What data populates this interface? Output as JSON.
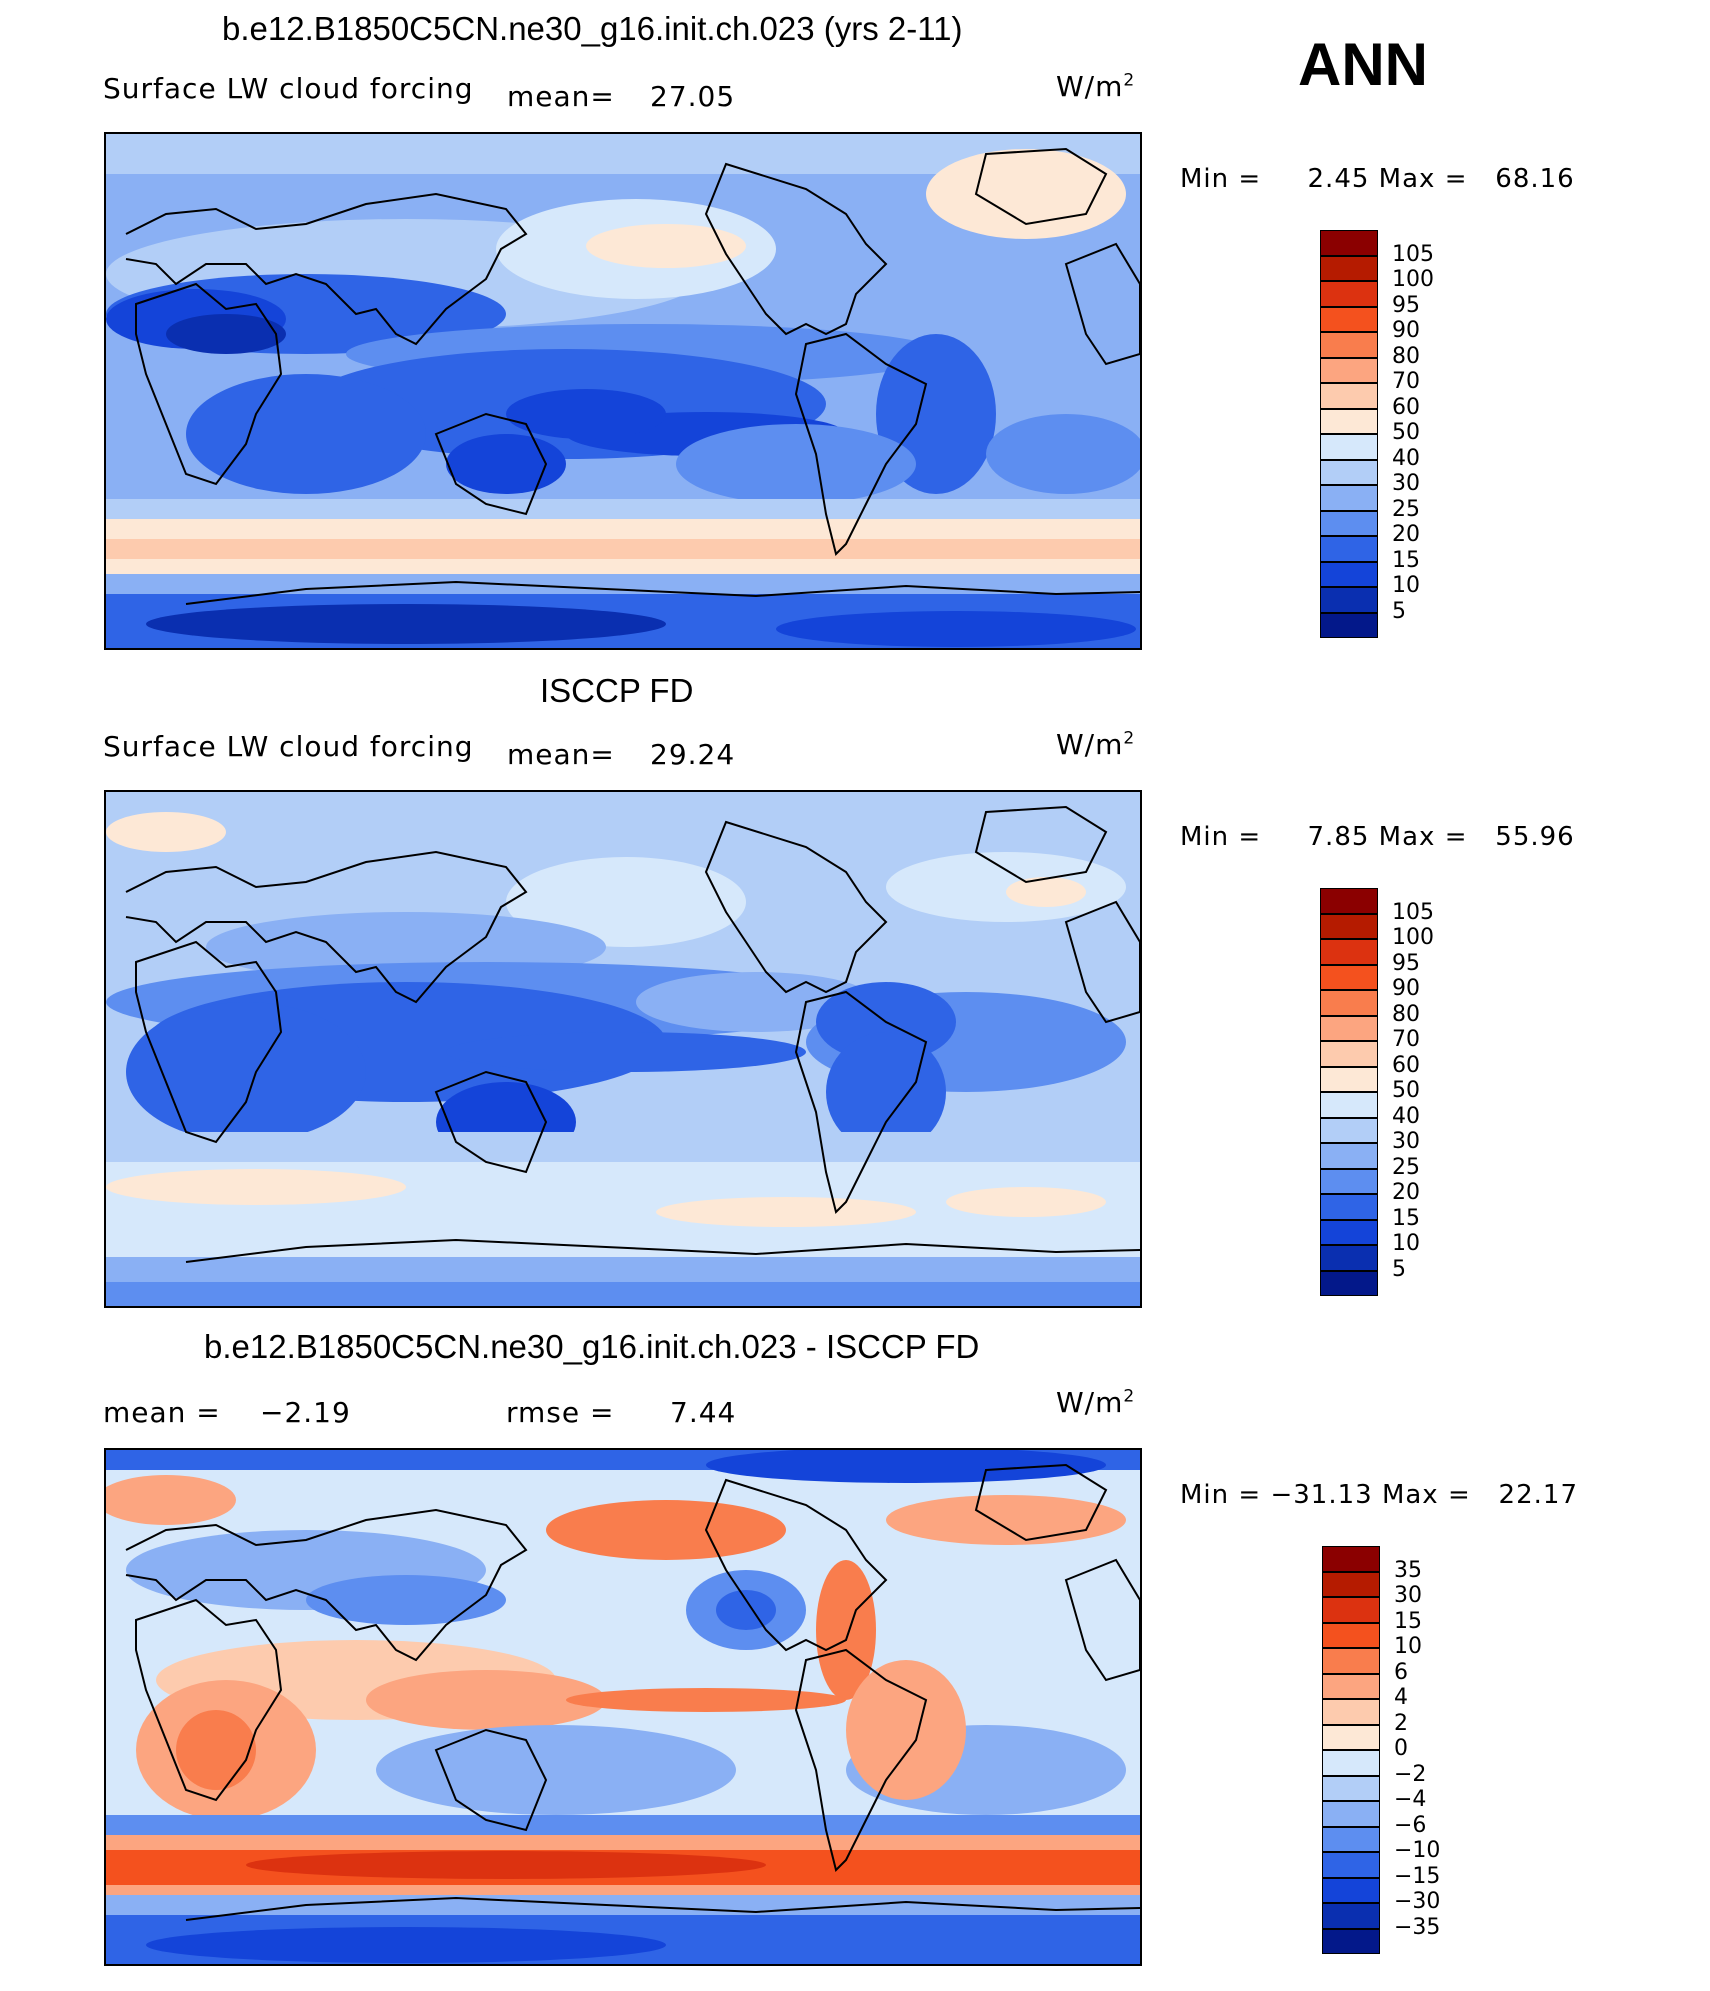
{
  "season": "ANN",
  "units_base": "W/m",
  "units_exp": "2",
  "panels": [
    {
      "title": "b.e12.B1850C5CN.ne30_g16.init.ch.023 (yrs 2-11)",
      "variable": "Surface LW cloud forcing",
      "mean_label": "mean=",
      "mean": "27.05",
      "min_label": "Min =",
      "min": "2.45",
      "max_label": "Max =",
      "max": "68.16",
      "colorbar_levels": [
        "105",
        "100",
        "95",
        "90",
        "80",
        "70",
        "60",
        "50",
        "40",
        "30",
        "25",
        "20",
        "15",
        "10",
        "5"
      ],
      "colorbar_colors": [
        "#8b0000",
        "#b51b00",
        "#dc3210",
        "#f4511e",
        "#f97d4d",
        "#fca580",
        "#fdcbae",
        "#fde8d6",
        "#d6e8fb",
        "#b2cef7",
        "#8ab0f4",
        "#5d8ef0",
        "#2f64e6",
        "#1444d9",
        "#0a2fb0",
        "#03188a"
      ]
    },
    {
      "title": "ISCCP FD",
      "variable": "Surface LW cloud forcing",
      "mean_label": "mean=",
      "mean": "29.24",
      "min_label": "Min =",
      "min": "7.85",
      "max_label": "Max =",
      "max": "55.96",
      "colorbar_levels": [
        "105",
        "100",
        "95",
        "90",
        "80",
        "70",
        "60",
        "50",
        "40",
        "30",
        "25",
        "20",
        "15",
        "10",
        "5"
      ],
      "colorbar_colors": [
        "#8b0000",
        "#b51b00",
        "#dc3210",
        "#f4511e",
        "#f97d4d",
        "#fca580",
        "#fdcbae",
        "#fde8d6",
        "#d6e8fb",
        "#b2cef7",
        "#8ab0f4",
        "#5d8ef0",
        "#2f64e6",
        "#1444d9",
        "#0a2fb0",
        "#03188a"
      ]
    },
    {
      "title": "b.e12.B1850C5CN.ne30_g16.init.ch.023 - ISCCP FD",
      "mean_label": "mean =",
      "mean": "−2.19",
      "rmse_label": "rmse =",
      "rmse": "7.44",
      "min_label": "Min =",
      "min": "−31.13",
      "max_label": "Max =",
      "max": "22.17",
      "colorbar_levels": [
        "35",
        "30",
        "15",
        "10",
        "6",
        "4",
        "2",
        "0",
        "−2",
        "−4",
        "−6",
        "−10",
        "−15",
        "−30",
        "−35"
      ],
      "colorbar_colors": [
        "#8b0000",
        "#b51b00",
        "#dc3210",
        "#f4511e",
        "#f97d4d",
        "#fca580",
        "#fdcbae",
        "#fde8d6",
        "#d6e8fb",
        "#b2cef7",
        "#8ab0f4",
        "#5d8ef0",
        "#2f64e6",
        "#1444d9",
        "#0a2fb0",
        "#03188a"
      ]
    }
  ]
}
